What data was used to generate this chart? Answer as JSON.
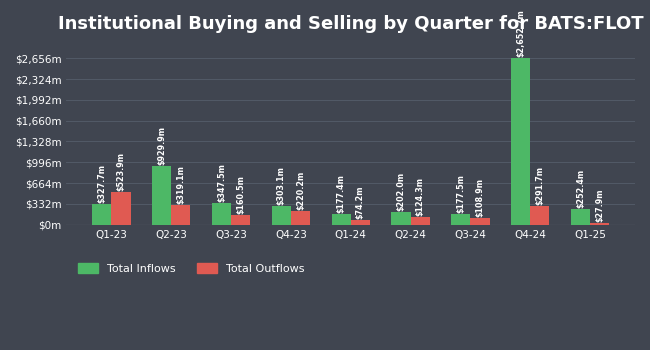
{
  "title": "Institutional Buying and Selling by Quarter for BATS:FLOT",
  "quarters": [
    "Q1-23",
    "Q2-23",
    "Q3-23",
    "Q4-23",
    "Q1-24",
    "Q2-24",
    "Q3-24",
    "Q4-24",
    "Q1-25"
  ],
  "inflows": [
    327.7,
    929.9,
    347.5,
    303.1,
    177.4,
    202.0,
    177.5,
    2652.7,
    252.4
  ],
  "outflows": [
    523.9,
    319.1,
    160.5,
    220.2,
    74.2,
    124.3,
    108.9,
    291.7,
    27.9
  ],
  "inflow_labels": [
    "$327.7m",
    "$929.9m",
    "$347.5m",
    "$303.1m",
    "$177.4m",
    "$202.0m",
    "$177.5m",
    "$2,652.7m",
    "$252.4m"
  ],
  "outflow_labels": [
    "$523.9m",
    "$319.1m",
    "$160.5m",
    "$220.2m",
    "$74.2m",
    "$124.3m",
    "$108.9m",
    "$291.7m",
    "$27.9m"
  ],
  "inflow_color": "#4db866",
  "outflow_color": "#e05a52",
  "bg_color": "#404550",
  "grid_color": "#555e6b",
  "text_color": "#ffffff",
  "legend_labels": [
    "Total Inflows",
    "Total Outflows"
  ],
  "ylabel_ticks": [
    "$0m",
    "$332m",
    "$664m",
    "$996m",
    "$1,328m",
    "$1,660m",
    "$1,992m",
    "$2,324m",
    "$2,656m"
  ],
  "ytick_vals": [
    0,
    332,
    664,
    996,
    1328,
    1660,
    1992,
    2324,
    2656
  ],
  "ylim": [
    0,
    2900
  ],
  "bar_width": 0.32,
  "title_fontsize": 13,
  "label_fontsize": 5.8,
  "tick_fontsize": 7.5,
  "legend_fontsize": 8
}
